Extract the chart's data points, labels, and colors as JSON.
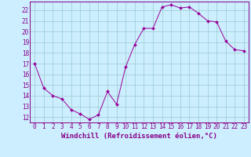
{
  "x": [
    0,
    1,
    2,
    3,
    4,
    5,
    6,
    7,
    8,
    9,
    10,
    11,
    12,
    13,
    14,
    15,
    16,
    17,
    18,
    19,
    20,
    21,
    22,
    23
  ],
  "y": [
    17.0,
    14.7,
    14.0,
    13.7,
    12.7,
    12.3,
    11.8,
    12.2,
    14.4,
    13.2,
    16.7,
    18.8,
    20.3,
    20.3,
    22.3,
    22.5,
    22.2,
    22.3,
    21.7,
    21.0,
    20.9,
    19.1,
    18.3,
    18.2
  ],
  "line_color": "#990099",
  "marker": "D",
  "marker_size": 2.0,
  "bg_color": "#cceeff",
  "grid_color": "#99cccc",
  "axis_color": "#880088",
  "xlabel": "Windchill (Refroidissement éolien,°C)",
  "ylim": [
    11.5,
    22.8
  ],
  "xlim": [
    -0.5,
    23.5
  ],
  "yticks": [
    12,
    13,
    14,
    15,
    16,
    17,
    18,
    19,
    20,
    21,
    22
  ],
  "xticks": [
    0,
    1,
    2,
    3,
    4,
    5,
    6,
    7,
    8,
    9,
    10,
    11,
    12,
    13,
    14,
    15,
    16,
    17,
    18,
    19,
    20,
    21,
    22,
    23
  ],
  "tick_fontsize": 5.5,
  "label_fontsize": 6.5
}
